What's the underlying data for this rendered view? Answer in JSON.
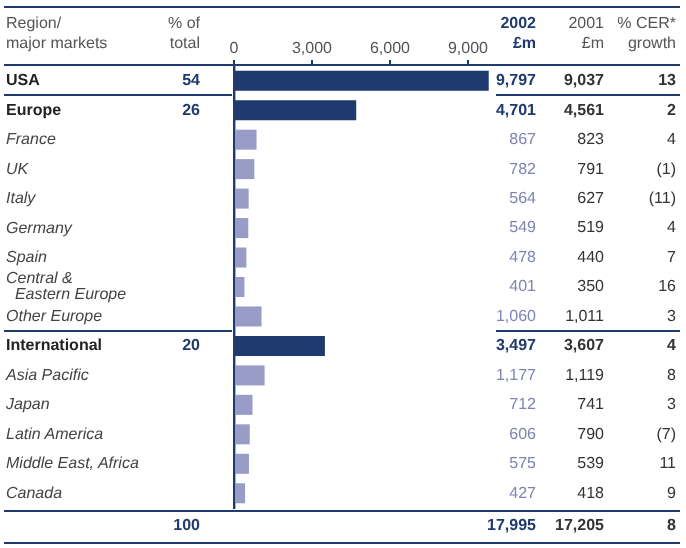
{
  "chart_data": {
    "type": "bar",
    "orientation": "horizontal",
    "ylabel": "Region/\nmajor markets",
    "xlabel": "2002\n£m",
    "categories": [
      "USA",
      "Europe",
      "France",
      "UK",
      "Italy",
      "Germany",
      "Spain",
      "Central &\n  Eastern Europe",
      "Other Europe",
      "International",
      "Asia Pacific",
      "Japan",
      "Latin America",
      "Middle East, Africa",
      "Canada"
    ],
    "values": [
      9797,
      4701,
      867,
      782,
      564,
      549,
      478,
      401,
      1060,
      3497,
      1177,
      712,
      606,
      575,
      427
    ],
    "colors": [
      "#1f3a6e",
      "#1f3a6e",
      "#9a9cc8",
      "#9a9cc8",
      "#9a9cc8",
      "#9a9cc8",
      "#9a9cc8",
      "#9a9cc8",
      "#9a9cc8",
      "#1f3a6e",
      "#9a9cc8",
      "#9a9cc8",
      "#9a9cc8",
      "#9a9cc8",
      "#9a9cc8"
    ],
    "value_labels": [
      "9,797",
      "4,701",
      "867",
      "782",
      "564",
      "549",
      "478",
      "401",
      "1,060",
      "3,497",
      "1,177",
      "712",
      "606",
      "575",
      "427"
    ],
    "xlim": [
      0,
      10000
    ],
    "xticks": [
      {
        "value": 0,
        "label": "0"
      },
      {
        "value": 3000,
        "label": "3,000"
      },
      {
        "value": 6000,
        "label": "6,000"
      },
      {
        "value": 9000,
        "label": "9,000"
      }
    ],
    "grid": false,
    "legend": false,
    "annotations": [
      "% of\ntotal",
      "2001\n£m",
      "% CER*\ngrowth",
      "9,037",
      "13",
      "4,561",
      "2",
      "823",
      "4",
      "791",
      "(1)",
      "627",
      "(11)",
      "519",
      "4",
      "440",
      "7",
      "350",
      "16",
      "1,011",
      "3",
      "3,607",
      "4",
      "1,119",
      "8",
      "741",
      "3",
      "790",
      "(7)",
      "539",
      "11",
      "418",
      "9",
      "54",
      "26",
      "20",
      "100",
      "17,995",
      "17,205",
      "8"
    ]
  }
}
